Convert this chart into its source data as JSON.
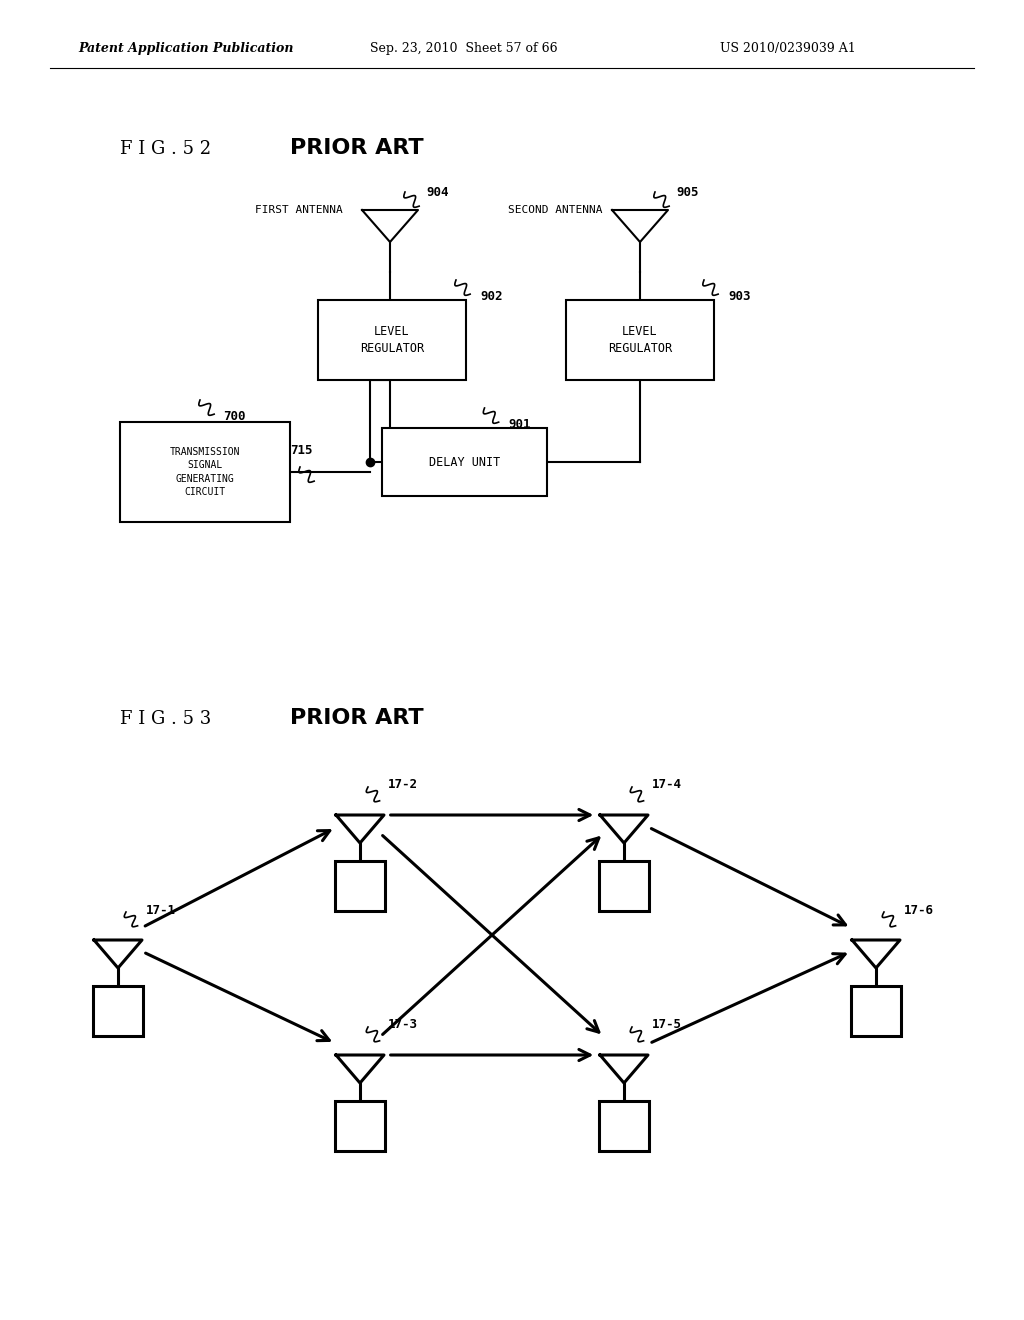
{
  "background_color": "#ffffff",
  "header_text": "Patent Application Publication",
  "header_date": "Sep. 23, 2010  Sheet 57 of 66",
  "header_patent": "US 2010/0239039 A1",
  "fig52_label": "F I G . 5 2",
  "fig52_prior_art": "PRIOR ART",
  "fig53_label": "F I G . 5 3",
  "fig53_prior_art": "PRIOR ART"
}
